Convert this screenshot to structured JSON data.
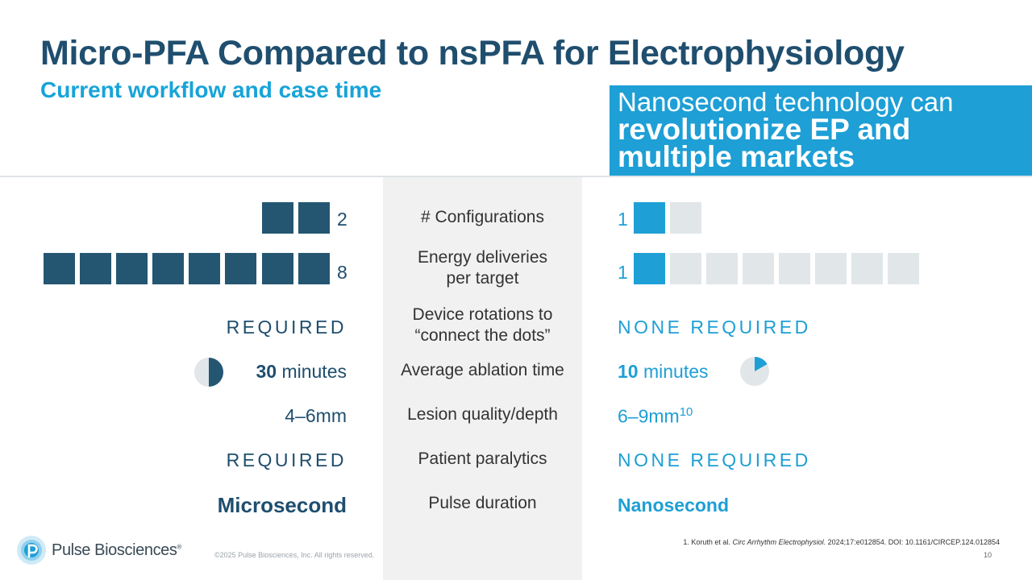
{
  "header": {
    "title": "Micro-PFA Compared to nsPFA for Electrophysiology",
    "subtitle": "Current workflow and case time"
  },
  "callout": {
    "line1": "Nanosecond technology can",
    "line2": "revolutionize EP and",
    "line3": "multiple markets"
  },
  "rows": [
    {
      "label": "# Configurations",
      "left": "2",
      "right": "1",
      "left_filled": 2,
      "right_filled": 1,
      "right_total": 2
    },
    {
      "label_line1": "Energy deliveries",
      "label_line2": "per target",
      "left": "8",
      "right": "1",
      "left_filled": 8,
      "right_filled": 1,
      "right_total": 8
    },
    {
      "label_line1": "Device rotations to",
      "label_line2": "“connect the dots”",
      "left": "REQUIRED",
      "right": "NONE REQUIRED"
    },
    {
      "label": "Average ablation time",
      "left_num": "30",
      "left_unit": "minutes",
      "right_num": "10",
      "right_unit": "minutes",
      "left_fraction": 0.5,
      "right_fraction": 0.1667
    },
    {
      "label": "Lesion quality/depth",
      "left": "4–6mm",
      "right": "6–9mm",
      "right_sup": "10"
    },
    {
      "label": "Patient paralytics",
      "left": "REQUIRED",
      "right": "NONE REQUIRED"
    },
    {
      "label": "Pulse duration",
      "left": "Microsecond",
      "right": "Nanosecond"
    }
  ],
  "footer": {
    "brand": "Pulse Biosciences",
    "registered": "®",
    "copyright": "©2025 Pulse Biosciences, Inc. All rights reserved.",
    "ref_authors": "1. Koruth et al. ",
    "ref_journal": "Circ Arrhythm Electrophysiol",
    "ref_rest": ". 2024;17:e012854. DOI: 10.1161/CIRCEP.124.012854",
    "page": "10"
  },
  "colors": {
    "navy": "#1f4e6e",
    "blue": "#1e9fd5",
    "grey": "#e1e6e9"
  }
}
